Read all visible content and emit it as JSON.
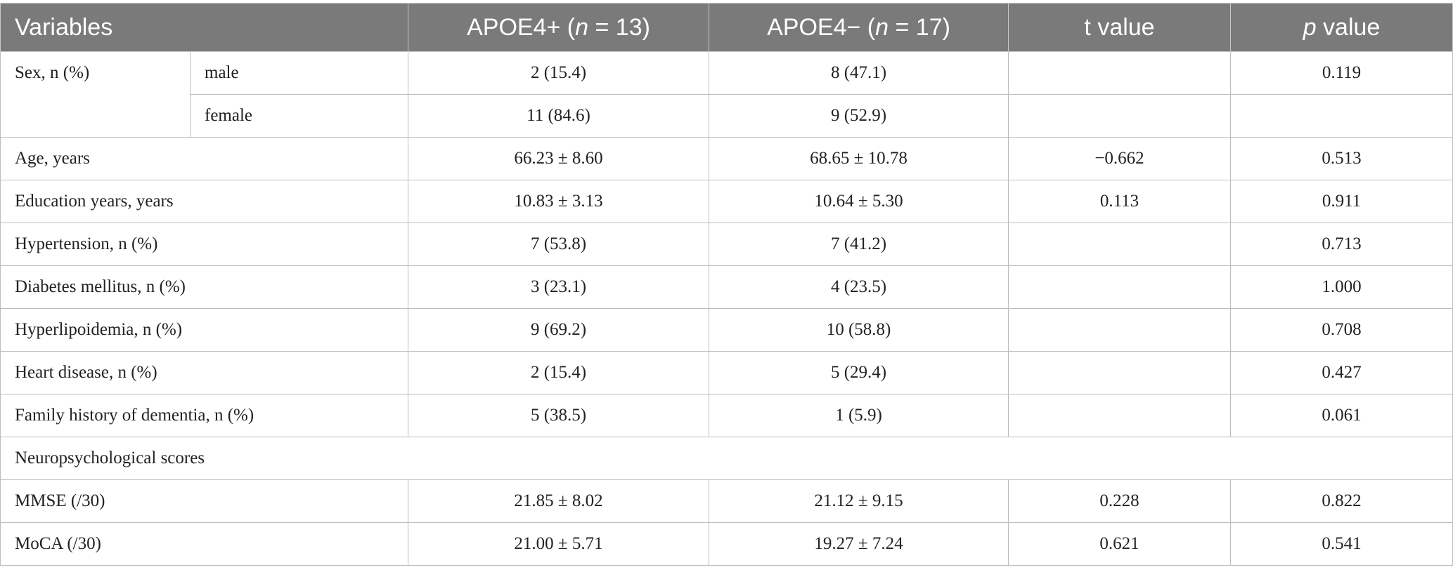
{
  "table": {
    "columns": [
      [
        "Variables"
      ],
      [
        "APOE4+ (",
        "n",
        " = 13)"
      ],
      [
        "APOE4− (",
        "n",
        " = 17)"
      ],
      [
        "t value"
      ],
      [
        "p",
        " value"
      ]
    ],
    "rows": [
      {
        "label": "Sex, n (%)",
        "sub": "male",
        "cells": [
          "2 (15.4)",
          "8 (47.1)",
          null,
          "0.119"
        ]
      },
      {
        "sub": "female",
        "cells": [
          "11 (84.6)",
          "9 (52.9)",
          null,
          null
        ]
      },
      {
        "label": "Age, years",
        "cells": [
          "66.23 ± 8.60",
          "68.65 ± 10.78",
          "−0.662",
          "0.513"
        ]
      },
      {
        "label": "Education years, years",
        "cells": [
          "10.83 ± 3.13",
          "10.64 ± 5.30",
          "0.113",
          "0.911"
        ]
      },
      {
        "label": "Hypertension, n (%)",
        "cells": [
          "7 (53.8)",
          "7 (41.2)",
          null,
          "0.713"
        ]
      },
      {
        "label": "Diabetes mellitus, n (%)",
        "cells": [
          "3 (23.1)",
          "4 (23.5)",
          null,
          "1.000"
        ]
      },
      {
        "label": "Hyperlipoidemia, n (%)",
        "cells": [
          "9 (69.2)",
          "10 (58.8)",
          null,
          "0.708"
        ]
      },
      {
        "label": "Heart disease, n (%)",
        "cells": [
          "2 (15.4)",
          "5 (29.4)",
          null,
          "0.427"
        ]
      },
      {
        "label": "Family history of dementia, n (%)",
        "cells": [
          "5 (38.5)",
          "1 (5.9)",
          null,
          "0.061"
        ]
      },
      {
        "label": "Neuropsychological scores"
      },
      {
        "label": "MMSE (/30)",
        "cells": [
          "21.85 ± 8.02",
          "21.12 ± 9.15",
          "0.228",
          "0.822"
        ]
      },
      {
        "label": "MoCA (/30)",
        "cells": [
          "21.00 ± 5.71",
          "19.27 ± 7.24",
          "0.621",
          "0.541"
        ]
      }
    ]
  }
}
